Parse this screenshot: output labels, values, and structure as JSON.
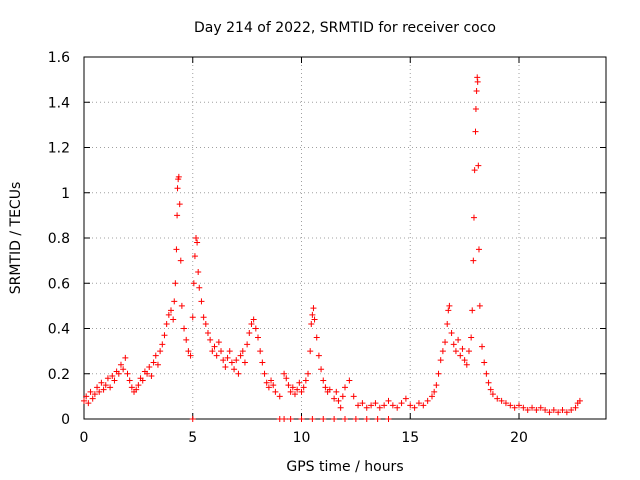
{
  "chart_data": {
    "type": "scatter",
    "title": "Day 214 of 2022, SRMTID for receiver coco",
    "xlabel": "GPS time / hours",
    "ylabel": "SRMTID / TECUs",
    "xlim": [
      0,
      24
    ],
    "ylim": [
      0,
      1.6
    ],
    "x_ticks": [
      0,
      5,
      10,
      15,
      20
    ],
    "x_tick_labels": [
      "0",
      "5",
      "10",
      "15",
      "20"
    ],
    "y_ticks": [
      0,
      0.2,
      0.4,
      0.6,
      0.8,
      1.0,
      1.2,
      1.4,
      1.6
    ],
    "y_tick_labels": [
      "0",
      "0.2",
      "0.4",
      "0.6",
      "0.8",
      "1",
      "1.2",
      "1.4",
      "1.6"
    ],
    "grid": true,
    "marker": "+",
    "marker_color": "#ff0000",
    "series": [
      {
        "name": "SRMTID",
        "points": [
          [
            0.0,
            0.08
          ],
          [
            0.1,
            0.1
          ],
          [
            0.2,
            0.07
          ],
          [
            0.3,
            0.12
          ],
          [
            0.4,
            0.09
          ],
          [
            0.5,
            0.11
          ],
          [
            0.6,
            0.14
          ],
          [
            0.7,
            0.12
          ],
          [
            0.8,
            0.16
          ],
          [
            0.9,
            0.13
          ],
          [
            1.0,
            0.15
          ],
          [
            1.1,
            0.18
          ],
          [
            1.2,
            0.14
          ],
          [
            1.3,
            0.19
          ],
          [
            1.4,
            0.17
          ],
          [
            1.5,
            0.21
          ],
          [
            1.6,
            0.2
          ],
          [
            1.7,
            0.24
          ],
          [
            1.8,
            0.22
          ],
          [
            1.9,
            0.27
          ],
          [
            2.0,
            0.2
          ],
          [
            2.1,
            0.17
          ],
          [
            2.2,
            0.14
          ],
          [
            2.3,
            0.12
          ],
          [
            2.4,
            0.13
          ],
          [
            2.5,
            0.15
          ],
          [
            2.6,
            0.18
          ],
          [
            2.7,
            0.17
          ],
          [
            2.8,
            0.21
          ],
          [
            2.9,
            0.2
          ],
          [
            3.0,
            0.23
          ],
          [
            3.1,
            0.19
          ],
          [
            3.2,
            0.25
          ],
          [
            3.3,
            0.28
          ],
          [
            3.4,
            0.24
          ],
          [
            3.5,
            0.3
          ],
          [
            3.6,
            0.33
          ],
          [
            3.7,
            0.37
          ],
          [
            3.8,
            0.42
          ],
          [
            3.9,
            0.46
          ],
          [
            4.0,
            0.48
          ],
          [
            4.1,
            0.44
          ],
          [
            4.15,
            0.52
          ],
          [
            4.2,
            0.6
          ],
          [
            4.25,
            0.75
          ],
          [
            4.28,
            0.9
          ],
          [
            4.3,
            1.02
          ],
          [
            4.33,
            1.06
          ],
          [
            4.36,
            1.07
          ],
          [
            4.4,
            0.95
          ],
          [
            4.45,
            0.7
          ],
          [
            4.5,
            0.5
          ],
          [
            4.6,
            0.4
          ],
          [
            4.7,
            0.35
          ],
          [
            4.8,
            0.3
          ],
          [
            4.9,
            0.28
          ],
          [
            5.0,
            0.45
          ],
          [
            5.05,
            0.6
          ],
          [
            5.1,
            0.72
          ],
          [
            5.15,
            0.8
          ],
          [
            5.2,
            0.78
          ],
          [
            5.25,
            0.65
          ],
          [
            5.3,
            0.58
          ],
          [
            5.4,
            0.52
          ],
          [
            5.5,
            0.45
          ],
          [
            5.6,
            0.42
          ],
          [
            5.7,
            0.38
          ],
          [
            5.8,
            0.35
          ],
          [
            5.9,
            0.3
          ],
          [
            6.0,
            0.32
          ],
          [
            6.1,
            0.28
          ],
          [
            6.2,
            0.34
          ],
          [
            6.3,
            0.3
          ],
          [
            6.4,
            0.26
          ],
          [
            6.5,
            0.23
          ],
          [
            6.6,
            0.27
          ],
          [
            6.7,
            0.3
          ],
          [
            6.8,
            0.25
          ],
          [
            6.9,
            0.22
          ],
          [
            7.0,
            0.26
          ],
          [
            7.1,
            0.2
          ],
          [
            7.2,
            0.28
          ],
          [
            7.3,
            0.3
          ],
          [
            7.4,
            0.25
          ],
          [
            7.5,
            0.33
          ],
          [
            7.6,
            0.38
          ],
          [
            7.7,
            0.42
          ],
          [
            7.8,
            0.44
          ],
          [
            7.9,
            0.4
          ],
          [
            8.0,
            0.36
          ],
          [
            8.1,
            0.3
          ],
          [
            8.2,
            0.25
          ],
          [
            8.3,
            0.2
          ],
          [
            8.4,
            0.16
          ],
          [
            8.5,
            0.14
          ],
          [
            8.6,
            0.17
          ],
          [
            8.7,
            0.15
          ],
          [
            8.8,
            0.12
          ],
          [
            9.0,
            0.1
          ],
          [
            9.2,
            0.2
          ],
          [
            9.3,
            0.18
          ],
          [
            9.4,
            0.15
          ],
          [
            9.5,
            0.12
          ],
          [
            9.6,
            0.14
          ],
          [
            9.7,
            0.11
          ],
          [
            9.8,
            0.13
          ],
          [
            9.9,
            0.16
          ],
          [
            10.0,
            0.12
          ],
          [
            10.1,
            0.14
          ],
          [
            10.2,
            0.17
          ],
          [
            10.3,
            0.2
          ],
          [
            10.4,
            0.3
          ],
          [
            10.45,
            0.42
          ],
          [
            10.5,
            0.46
          ],
          [
            10.55,
            0.49
          ],
          [
            10.6,
            0.44
          ],
          [
            10.7,
            0.36
          ],
          [
            10.8,
            0.28
          ],
          [
            10.9,
            0.22
          ],
          [
            11.0,
            0.17
          ],
          [
            11.1,
            0.14
          ],
          [
            11.2,
            0.12
          ],
          [
            11.3,
            0.13
          ],
          [
            11.5,
            0.09
          ],
          [
            11.6,
            0.12
          ],
          [
            11.7,
            0.08
          ],
          [
            11.8,
            0.05
          ],
          [
            11.9,
            0.1
          ],
          [
            12.0,
            0.14
          ],
          [
            12.2,
            0.17
          ],
          [
            12.4,
            0.1
          ],
          [
            12.6,
            0.06
          ],
          [
            12.8,
            0.07
          ],
          [
            13.0,
            0.05
          ],
          [
            13.2,
            0.06
          ],
          [
            13.4,
            0.07
          ],
          [
            13.6,
            0.05
          ],
          [
            13.8,
            0.06
          ],
          [
            14.0,
            0.08
          ],
          [
            14.2,
            0.06
          ],
          [
            14.4,
            0.05
          ],
          [
            14.6,
            0.07
          ],
          [
            14.8,
            0.09
          ],
          [
            15.0,
            0.06
          ],
          [
            15.2,
            0.05
          ],
          [
            15.4,
            0.07
          ],
          [
            15.6,
            0.06
          ],
          [
            15.8,
            0.08
          ],
          [
            16.0,
            0.1
          ],
          [
            16.1,
            0.12
          ],
          [
            16.2,
            0.15
          ],
          [
            16.3,
            0.2
          ],
          [
            16.4,
            0.26
          ],
          [
            16.5,
            0.3
          ],
          [
            16.6,
            0.34
          ],
          [
            16.7,
            0.42
          ],
          [
            16.75,
            0.48
          ],
          [
            16.8,
            0.5
          ],
          [
            16.9,
            0.38
          ],
          [
            17.0,
            0.33
          ],
          [
            17.1,
            0.3
          ],
          [
            17.2,
            0.35
          ],
          [
            17.3,
            0.28
          ],
          [
            17.4,
            0.31
          ],
          [
            17.5,
            0.26
          ],
          [
            17.6,
            0.24
          ],
          [
            17.7,
            0.3
          ],
          [
            17.8,
            0.36
          ],
          [
            17.85,
            0.48
          ],
          [
            17.9,
            0.7
          ],
          [
            17.93,
            0.89
          ],
          [
            17.96,
            1.1
          ],
          [
            18.0,
            1.27
          ],
          [
            18.02,
            1.37
          ],
          [
            18.05,
            1.45
          ],
          [
            18.08,
            1.51
          ],
          [
            18.1,
            1.49
          ],
          [
            18.13,
            1.12
          ],
          [
            18.16,
            0.75
          ],
          [
            18.2,
            0.5
          ],
          [
            18.3,
            0.32
          ],
          [
            18.4,
            0.25
          ],
          [
            18.5,
            0.2
          ],
          [
            18.6,
            0.16
          ],
          [
            18.7,
            0.13
          ],
          [
            18.8,
            0.11
          ],
          [
            19.0,
            0.09
          ],
          [
            19.2,
            0.08
          ],
          [
            19.4,
            0.07
          ],
          [
            19.6,
            0.06
          ],
          [
            19.8,
            0.05
          ],
          [
            20.0,
            0.06
          ],
          [
            20.2,
            0.05
          ],
          [
            20.4,
            0.04
          ],
          [
            20.6,
            0.05
          ],
          [
            20.8,
            0.04
          ],
          [
            21.0,
            0.05
          ],
          [
            21.2,
            0.04
          ],
          [
            21.4,
            0.03
          ],
          [
            21.6,
            0.04
          ],
          [
            21.8,
            0.03
          ],
          [
            22.0,
            0.04
          ],
          [
            22.2,
            0.03
          ],
          [
            22.4,
            0.04
          ],
          [
            22.6,
            0.05
          ],
          [
            22.7,
            0.07
          ],
          [
            22.8,
            0.08
          ],
          [
            5.0,
            0.0
          ],
          [
            9.0,
            0.0
          ],
          [
            9.2,
            0.0
          ],
          [
            9.5,
            0.0
          ],
          [
            10.0,
            0.0
          ],
          [
            10.5,
            0.0
          ],
          [
            11.0,
            0.0
          ],
          [
            11.5,
            0.0
          ],
          [
            12.0,
            0.0
          ],
          [
            12.5,
            0.0
          ],
          [
            13.0,
            0.0
          ],
          [
            13.5,
            0.0
          ],
          [
            14.0,
            0.0
          ]
        ]
      }
    ]
  }
}
